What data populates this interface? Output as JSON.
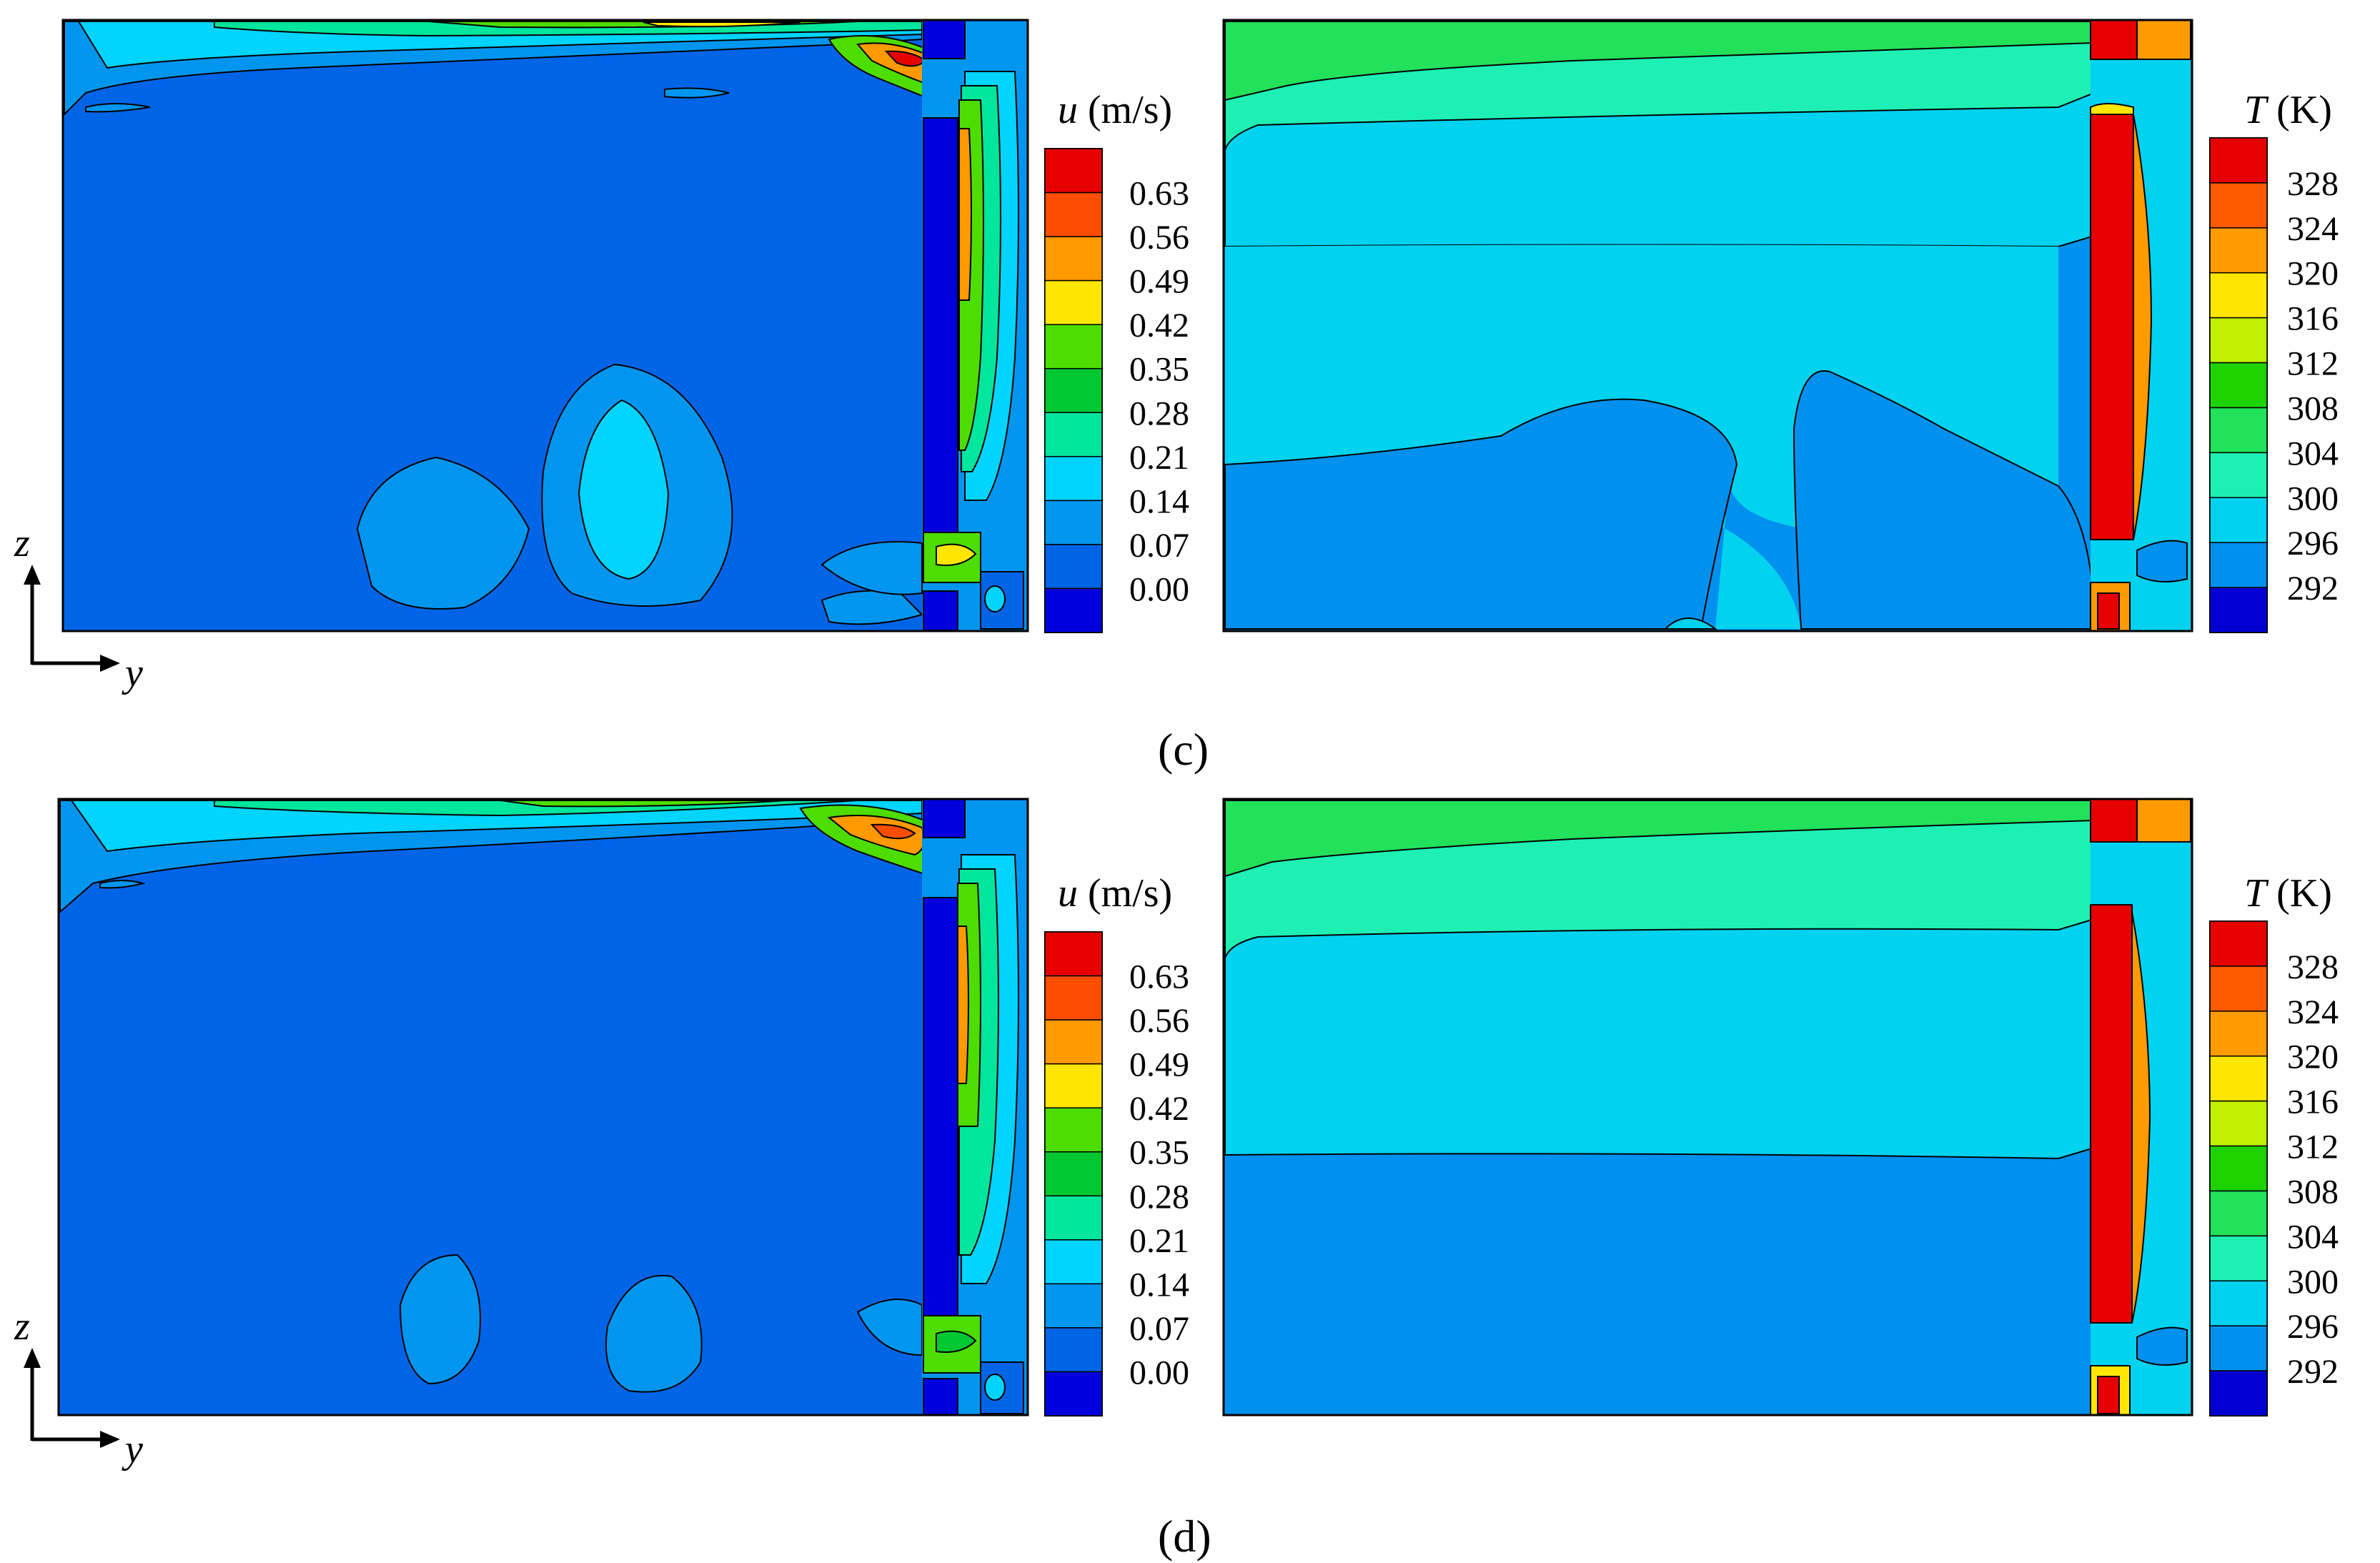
{
  "panels": [
    {
      "label": "(c)",
      "velocity_colorbar": {
        "symbol": "u",
        "unit": "(m/s)",
        "ticks": [
          "0.63",
          "0.56",
          "0.49",
          "0.42",
          "0.35",
          "0.28",
          "0.21",
          "0.14",
          "0.07",
          "0.00"
        ]
      },
      "temperature_colorbar": {
        "symbol": "T",
        "unit": "(K)",
        "ticks": [
          "328",
          "324",
          "320",
          "316",
          "312",
          "308",
          "304",
          "300",
          "296",
          "292"
        ]
      },
      "axes": {
        "vertical": "z",
        "horizontal": "y"
      }
    },
    {
      "label": "(d)",
      "velocity_colorbar": {
        "symbol": "u",
        "unit": "(m/s)",
        "ticks": [
          "0.63",
          "0.56",
          "0.49",
          "0.42",
          "0.35",
          "0.28",
          "0.21",
          "0.14",
          "0.07",
          "0.00"
        ]
      },
      "temperature_colorbar": {
        "symbol": "T",
        "unit": "(K)",
        "ticks": [
          "328",
          "324",
          "320",
          "316",
          "312",
          "308",
          "304",
          "300",
          "296",
          "292"
        ]
      },
      "axes": {
        "vertical": "z",
        "horizontal": "y"
      }
    }
  ],
  "colors": {
    "velocity_bands": [
      "#e60000",
      "#ff4d00",
      "#ff9900",
      "#ffe600",
      "#4ddd00",
      "#00c832",
      "#00e69c",
      "#00d4ff",
      "#0096f0",
      "#0064e6",
      "#0000dc"
    ],
    "temperature_bands": [
      "#e60000",
      "#ff5a00",
      "#ff9b00",
      "#ffe600",
      "#c0f000",
      "#1ed200",
      "#22e15a",
      "#1ef0b4",
      "#00d2f0",
      "#0090ee",
      "#0000d2"
    ],
    "outline": "#000000"
  }
}
